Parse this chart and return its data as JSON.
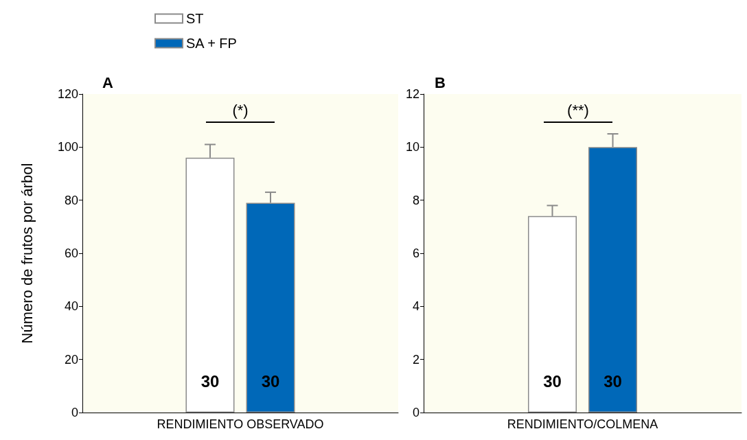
{
  "chart_data": [
    {
      "type": "bar",
      "title": "A",
      "ylabel": "Número de frutos por árbol",
      "categories": [
        "RENDIMIENTO OBSERVADO"
      ],
      "series": [
        {
          "name": "ST",
          "color": "#ffffff",
          "values": [
            96
          ],
          "errors": [
            5
          ]
        },
        {
          "name": "SA + FP",
          "color": "#0068b8",
          "values": [
            79
          ],
          "errors": [
            4
          ]
        }
      ],
      "ylim": [
        0,
        120
      ],
      "yticks": [
        0,
        20,
        40,
        60,
        80,
        100,
        120
      ],
      "legend": "top left",
      "annotations": [
        "(*)",
        "30",
        "30"
      ]
    },
    {
      "type": "bar",
      "title": "B",
      "categories": [
        "RENDIMIENTO/COLMENA"
      ],
      "series": [
        {
          "color": "#ffffff",
          "values": [
            7.4
          ],
          "errors": [
            0.4
          ]
        },
        {
          "color": "#0068b8",
          "values": [
            10
          ],
          "errors": [
            0.5
          ]
        }
      ],
      "ylim": [
        0,
        12
      ],
      "yticks": [
        0,
        2,
        4,
        6,
        8,
        10,
        12
      ],
      "annotations": [
        "(**)",
        "30",
        "30"
      ]
    }
  ]
}
